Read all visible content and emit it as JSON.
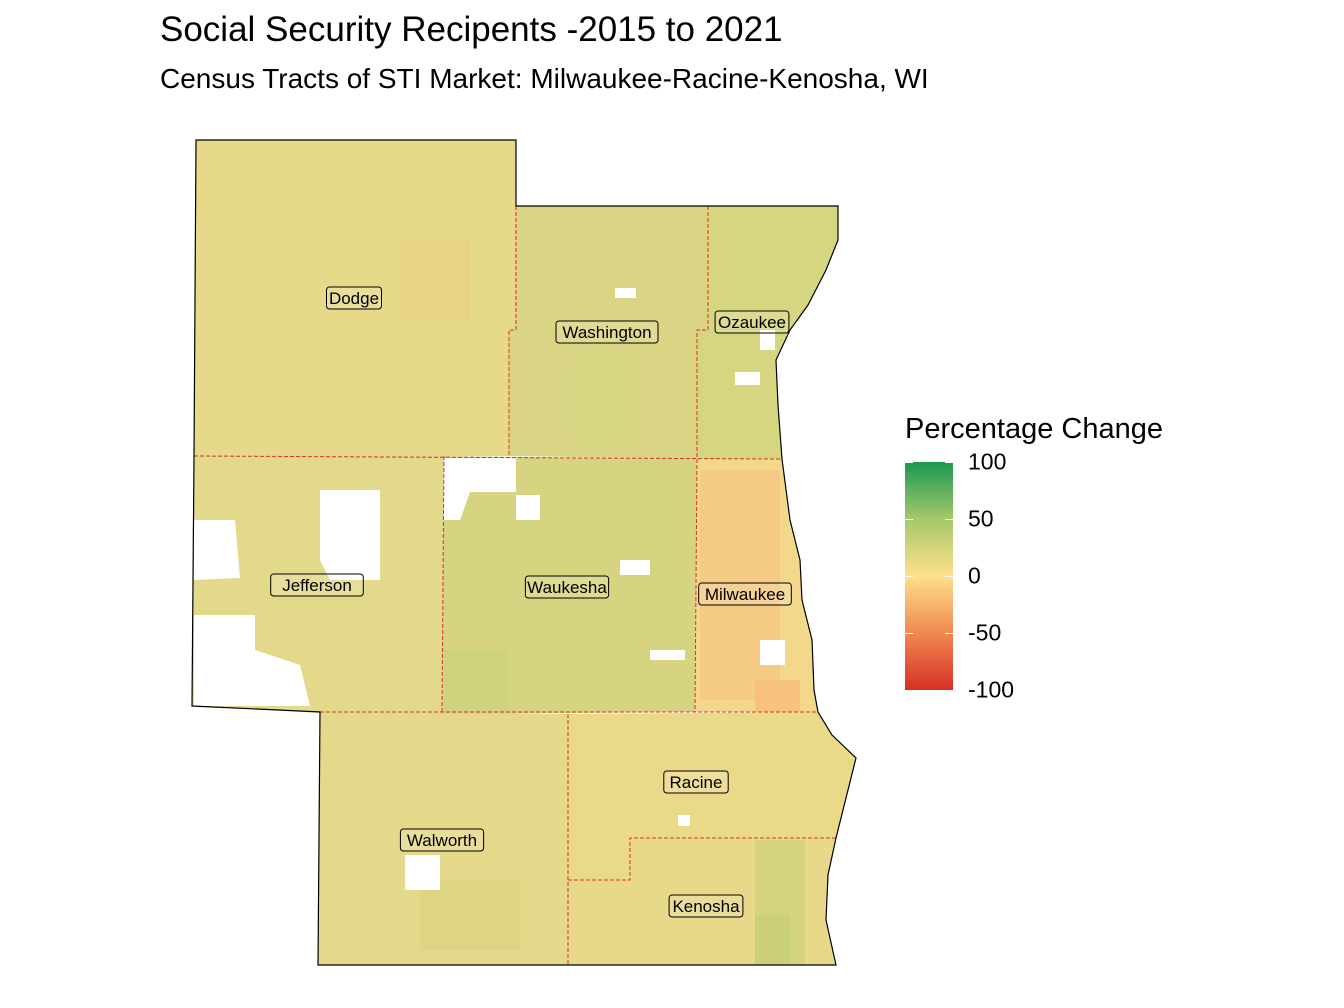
{
  "title": "Social Security Recipents -2015 to 2021",
  "subtitle": "Census Tracts of STI Market: Milwaukee-Racine-Kenosha, WI",
  "legend": {
    "title": "Percentage Change",
    "ticks": [
      {
        "label": "100",
        "value": 100
      },
      {
        "label": "50",
        "value": 50
      },
      {
        "label": "0",
        "value": 0
      },
      {
        "label": "-50",
        "value": -50
      },
      {
        "label": "-100",
        "value": -100
      }
    ],
    "colors": {
      "high": "#1a9850",
      "mid_high": "#a6c86a",
      "mid": "#fee08b",
      "mid_low": "#f0884f",
      "low": "#d73027"
    },
    "range": [
      -100,
      100
    ]
  },
  "counties": [
    {
      "name": "Dodge",
      "fill": "#e6d98a"
    },
    {
      "name": "Washington",
      "fill": "#dad584"
    },
    {
      "name": "Ozaukee",
      "fill": "#d6d580"
    },
    {
      "name": "Jefferson",
      "fill": "#e3d98a"
    },
    {
      "name": "Waukesha",
      "fill": "#d6d480"
    },
    {
      "name": "Milwaukee",
      "fill": "#f3d88c"
    },
    {
      "name": "Walworth",
      "fill": "#e4d98a"
    },
    {
      "name": "Racine",
      "fill": "#ebd98a"
    },
    {
      "name": "Kenosha",
      "fill": "#e7d88a"
    }
  ],
  "colors": {
    "boundary": "#e03020",
    "outline": "#000000",
    "no_data": "#ffffff"
  }
}
